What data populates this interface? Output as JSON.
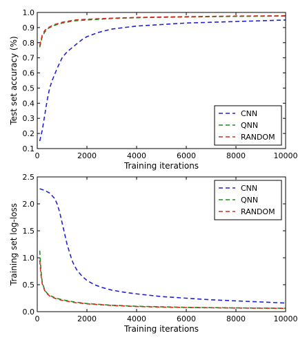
{
  "chart_data": [
    {
      "type": "line",
      "title": "",
      "xlabel": "Training iterations",
      "ylabel": "Test set accuracy (%)",
      "xlim": [
        0,
        10000
      ],
      "ylim": [
        0.1,
        1.0
      ],
      "xticks": [
        0,
        2000,
        4000,
        6000,
        8000,
        10000
      ],
      "yticks": [
        0.1,
        0.2,
        0.3,
        0.4,
        0.5,
        0.6,
        0.7,
        0.8,
        0.9,
        1.0
      ],
      "ytick_labels": [
        "0.1",
        "0.2",
        "0.3",
        "0.4",
        "0.5",
        "0.6",
        "0.7",
        "0.8",
        "0.9",
        "1.0"
      ],
      "grid": false,
      "legend": "lower-right",
      "series": [
        {
          "name": "CNN",
          "color": "#1f1fd6",
          "style": "dashed",
          "x": [
            100,
            200,
            300,
            400,
            500,
            600,
            800,
            1000,
            1200,
            1500,
            1800,
            2000,
            2500,
            3000,
            3500,
            4000,
            5000,
            6000,
            7000,
            8000,
            9000,
            10000
          ],
          "y": [
            0.15,
            0.22,
            0.32,
            0.42,
            0.5,
            0.55,
            0.63,
            0.7,
            0.74,
            0.78,
            0.82,
            0.84,
            0.87,
            0.89,
            0.9,
            0.91,
            0.92,
            0.93,
            0.935,
            0.94,
            0.945,
            0.95
          ]
        },
        {
          "name": "QNN",
          "color": "#1a8c1a",
          "style": "dashed",
          "x": [
            100,
            200,
            300,
            400,
            500,
            700,
            1000,
            1500,
            2000,
            3000,
            4000,
            5000,
            6000,
            7000,
            8000,
            9000,
            10000
          ],
          "y": [
            0.77,
            0.84,
            0.87,
            0.89,
            0.9,
            0.915,
            0.93,
            0.945,
            0.95,
            0.96,
            0.965,
            0.968,
            0.97,
            0.972,
            0.974,
            0.975,
            0.976
          ]
        },
        {
          "name": "RANDOM",
          "color": "#d42a1f",
          "style": "dashed",
          "x": [
            100,
            200,
            300,
            400,
            500,
            700,
            1000,
            1500,
            2000,
            3000,
            4000,
            5000,
            6000,
            7000,
            8000,
            9000,
            10000
          ],
          "y": [
            0.78,
            0.85,
            0.88,
            0.895,
            0.905,
            0.92,
            0.935,
            0.95,
            0.955,
            0.962,
            0.967,
            0.97,
            0.972,
            0.974,
            0.976,
            0.977,
            0.978
          ]
        }
      ]
    },
    {
      "type": "line",
      "title": "",
      "xlabel": "Training iterations",
      "ylabel": "Training set log-loss",
      "xlim": [
        0,
        10000
      ],
      "ylim": [
        0.0,
        2.5
      ],
      "xticks": [
        0,
        2000,
        4000,
        6000,
        8000,
        10000
      ],
      "yticks": [
        0.0,
        0.5,
        1.0,
        1.5,
        2.0,
        2.5
      ],
      "ytick_labels": [
        "0.0",
        "0.5",
        "1.0",
        "1.5",
        "2.0",
        "2.5"
      ],
      "grid": false,
      "legend": "upper-right",
      "series": [
        {
          "name": "CNN",
          "color": "#1f1fd6",
          "style": "dashed",
          "x": [
            100,
            300,
            500,
            700,
            800,
            900,
            1000,
            1100,
            1200,
            1300,
            1400,
            1500,
            1600,
            1800,
            2000,
            2300,
            2600,
            3000,
            3500,
            4000,
            5000,
            6000,
            7000,
            8000,
            9000,
            10000
          ],
          "y": [
            2.28,
            2.25,
            2.2,
            2.1,
            2.0,
            1.85,
            1.65,
            1.45,
            1.25,
            1.1,
            0.95,
            0.85,
            0.77,
            0.66,
            0.58,
            0.5,
            0.45,
            0.4,
            0.36,
            0.33,
            0.28,
            0.25,
            0.22,
            0.2,
            0.18,
            0.16
          ]
        },
        {
          "name": "QNN",
          "color": "#1a8c1a",
          "style": "dashed",
          "x": [
            100,
            150,
            200,
            300,
            400,
            500,
            700,
            1000,
            1500,
            2000,
            3000,
            4000,
            5000,
            6000,
            7000,
            8000,
            9000,
            10000
          ],
          "y": [
            1.13,
            0.75,
            0.55,
            0.4,
            0.34,
            0.3,
            0.26,
            0.22,
            0.18,
            0.15,
            0.12,
            0.1,
            0.09,
            0.08,
            0.075,
            0.07,
            0.066,
            0.063
          ]
        },
        {
          "name": "RANDOM",
          "color": "#d42a1f",
          "style": "dashed",
          "x": [
            100,
            150,
            200,
            300,
            400,
            500,
            700,
            1000,
            1500,
            2000,
            3000,
            4000,
            5000,
            6000,
            7000,
            8000,
            9000,
            10000
          ],
          "y": [
            0.95,
            0.68,
            0.52,
            0.39,
            0.33,
            0.29,
            0.25,
            0.21,
            0.17,
            0.145,
            0.115,
            0.095,
            0.085,
            0.077,
            0.072,
            0.068,
            0.064,
            0.061
          ]
        }
      ]
    }
  ]
}
